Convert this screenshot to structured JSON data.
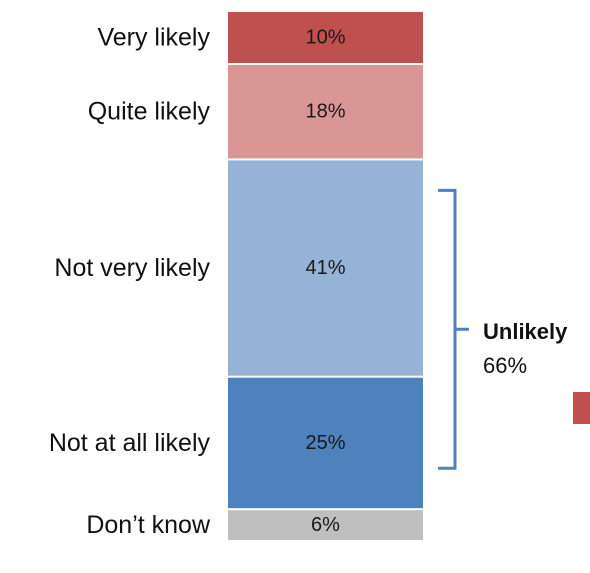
{
  "chart_data": {
    "type": "bar",
    "orientation": "stacked-vertical",
    "categories": [
      "Very likely",
      "Quite likely",
      "Not very likely",
      "Not at all likely",
      "Don’t know"
    ],
    "values": [
      10,
      18,
      41,
      25,
      6
    ],
    "value_labels": [
      "10%",
      "18%",
      "41%",
      "25%",
      "6%"
    ],
    "colors": [
      "#c0504d",
      "#da9694",
      "#95b3d7",
      "#4f81bd",
      "#bfbfbf"
    ],
    "title": "",
    "xlabel": "",
    "ylabel": "",
    "grid": false,
    "legend": "none",
    "annotations": [
      {
        "type": "bracket",
        "label": "Unlikely",
        "value_label": "66%",
        "covers": [
          "Not very likely",
          "Not at all likely"
        ],
        "color": "#4f81bd"
      }
    ],
    "partial_marker_color": "#c0504d"
  }
}
